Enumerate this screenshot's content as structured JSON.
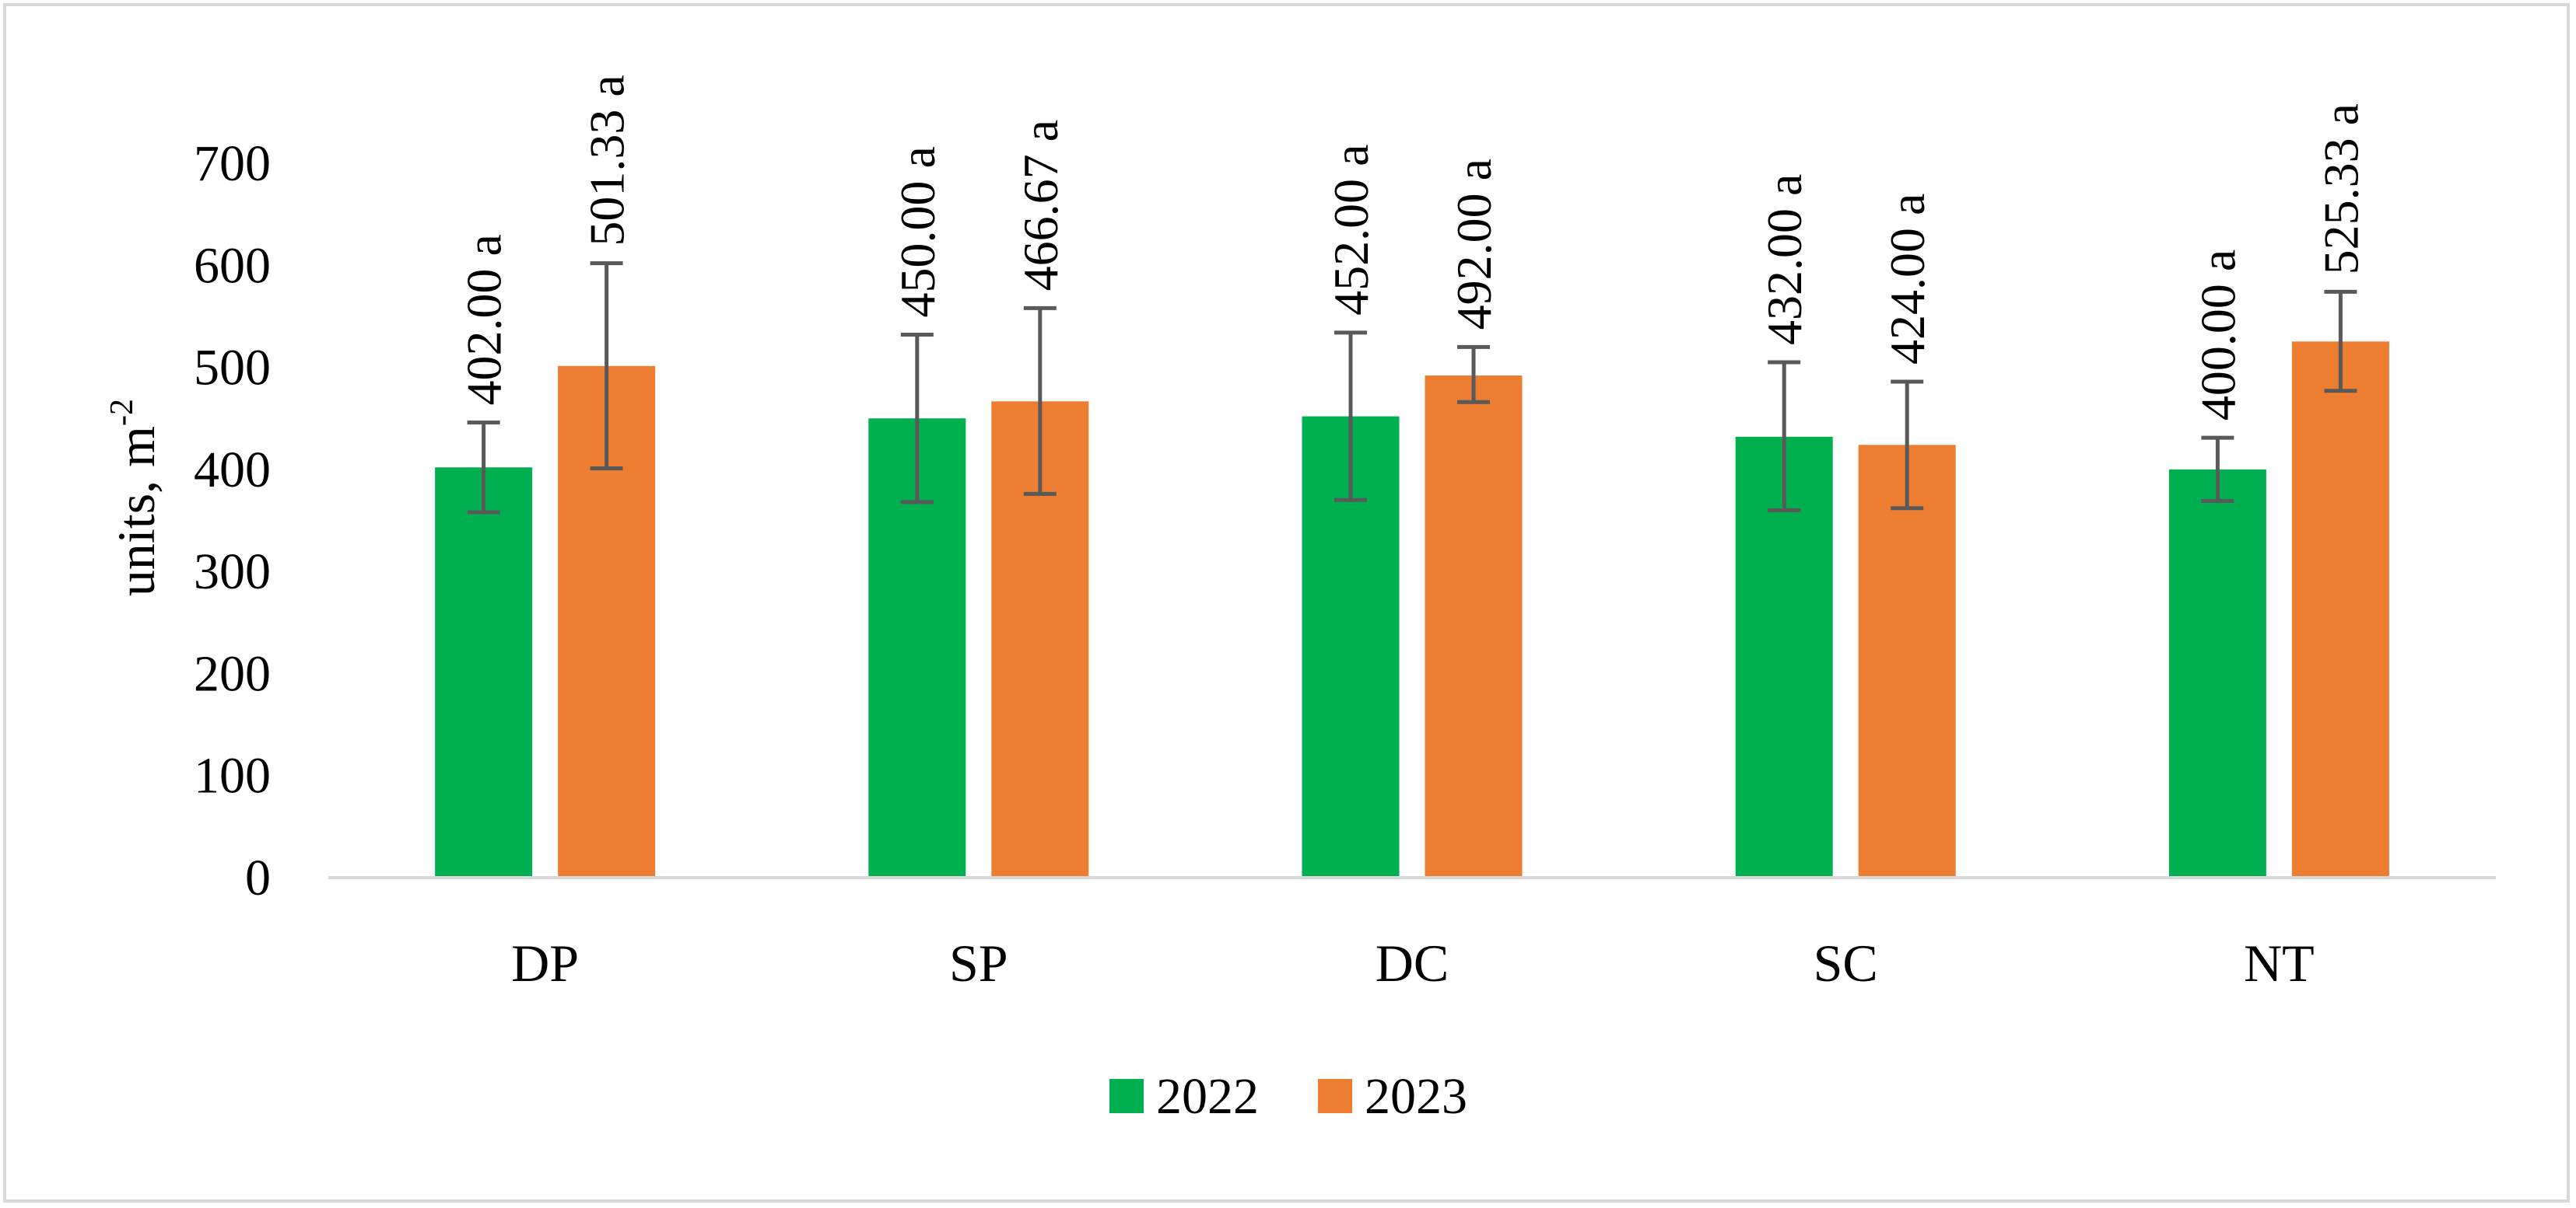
{
  "chart_data": {
    "type": "bar",
    "title": "",
    "xlabel": "",
    "ylabel": "units, m",
    "ylabel_superscript": "-2",
    "ylim": [
      0,
      700
    ],
    "yticks": [
      0,
      100,
      200,
      300,
      400,
      500,
      600,
      700
    ],
    "grid": false,
    "legend_position": "bottom",
    "categories": [
      "DP",
      "SP",
      "DC",
      "SC",
      "NT"
    ],
    "series": [
      {
        "name": "2022",
        "color": "#00b050",
        "values": [
          402.0,
          450.0,
          452.0,
          432.0,
          400.0
        ],
        "error_low": [
          358,
          368,
          370,
          360,
          369
        ],
        "error_high": [
          446,
          532,
          534,
          505,
          431
        ],
        "labels": [
          "402.00 a",
          "450.00 a",
          "452.00 a",
          "432.00 a",
          "400.00 a"
        ]
      },
      {
        "name": "2023",
        "color": "#ed7d31",
        "values": [
          501.33,
          466.67,
          492.0,
          424.0,
          525.33
        ],
        "error_low": [
          401,
          376,
          466,
          362,
          477
        ],
        "error_high": [
          602,
          558,
          520,
          486,
          574
        ],
        "labels": [
          "501.33 a",
          "466.67 a",
          "492.00 a",
          "424.00 a",
          "525.33 a"
        ]
      }
    ],
    "colors": {
      "axis": "#d9d9d9",
      "error_bar": "#595959",
      "frame": "#d9d9d9"
    }
  }
}
